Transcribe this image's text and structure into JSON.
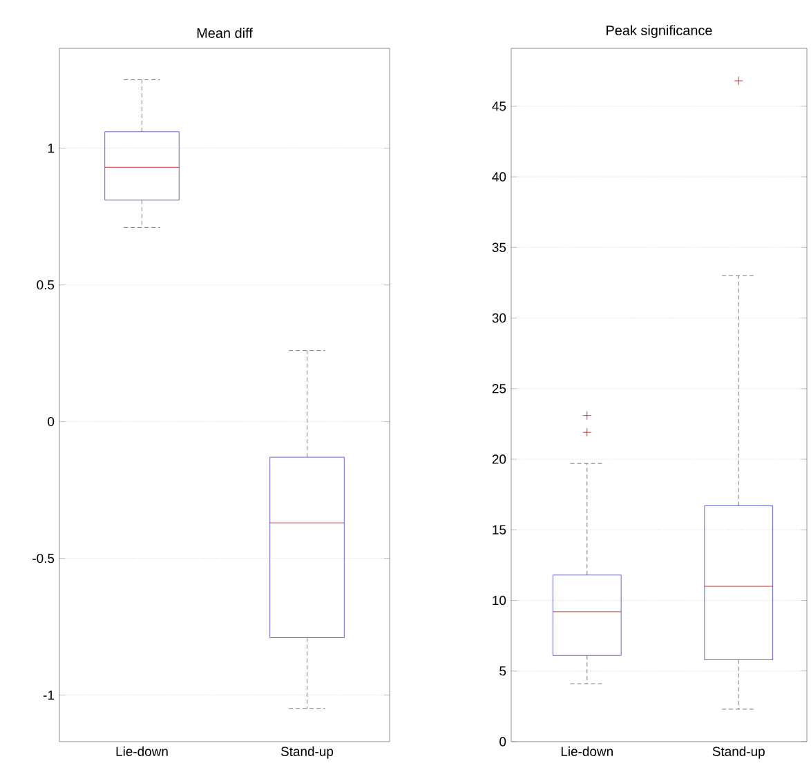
{
  "chart_data": [
    {
      "type": "box",
      "title": "Mean diff",
      "categories": [
        "Lie-down",
        "Stand-up"
      ],
      "ylim": [
        -1.17,
        1.365
      ],
      "yticks": [
        -1,
        -0.5,
        0,
        0.5,
        1
      ],
      "grid": "y",
      "marker": "cross",
      "series": [
        {
          "color": "#3f3fbf",
          "boxes": [
            {
              "low": 0.71,
              "q1": 0.81,
              "median": 0.93,
              "q3": 1.06,
              "high": 1.25
            },
            {
              "low": -1.05,
              "q1": -0.79,
              "median": -0.37,
              "q3": -0.13,
              "high": 0.26
            }
          ]
        }
      ]
    },
    {
      "type": "box",
      "title": "Peak significance",
      "categories": [
        "Lie-down",
        "Stand-up"
      ],
      "ylim": [
        0,
        49.1
      ],
      "yticks": [
        0,
        5,
        10,
        15,
        20,
        25,
        30,
        35,
        40,
        45
      ],
      "grid": "y",
      "marker": "cross",
      "series": [
        {
          "color": "#3f3fbf",
          "boxes": [
            {
              "low": 4.1,
              "q1": 6.1,
              "median": 9.2,
              "q3": 11.8,
              "high": 19.7,
              "outliers": [
                23.1,
                21.9
              ]
            },
            {
              "low": 2.3,
              "q1": 5.8,
              "median": 11.0,
              "q3": 16.7,
              "high": 33.0,
              "outliers": [
                46.8
              ]
            }
          ]
        }
      ]
    }
  ]
}
